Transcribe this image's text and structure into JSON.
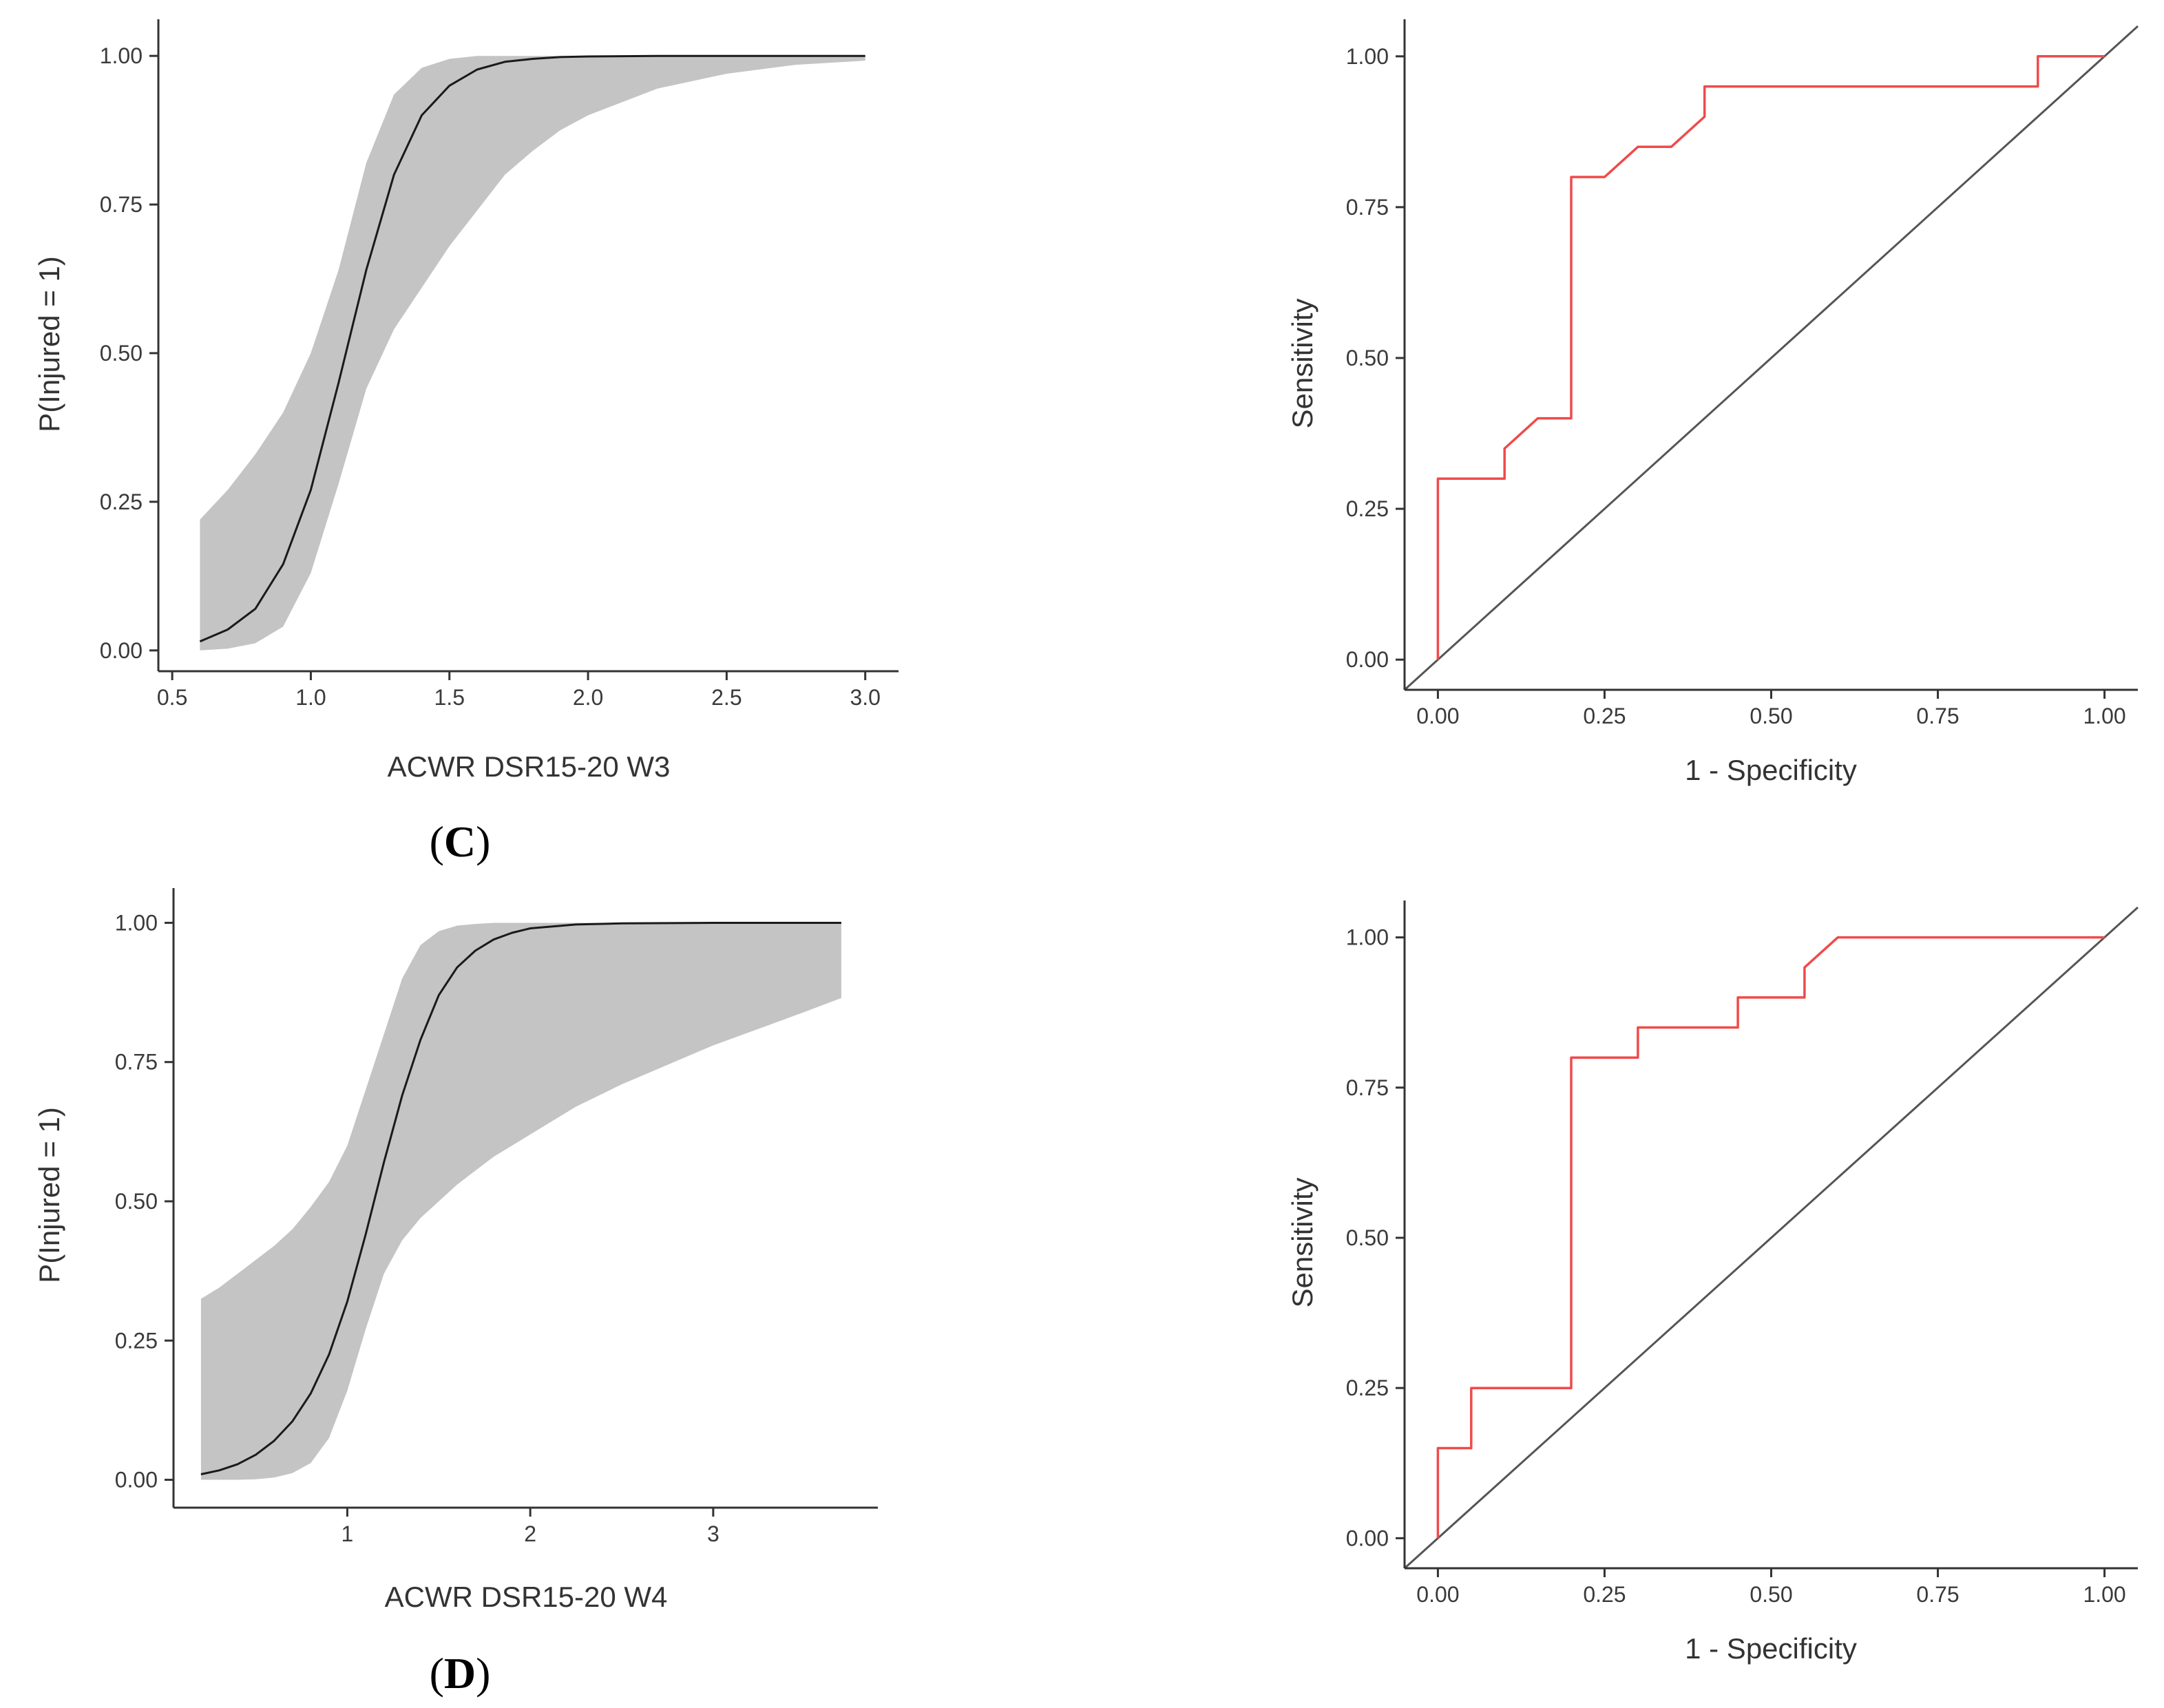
{
  "colors": {
    "axis": "#333333",
    "band": "#c4c4c4",
    "curve": "#1a1a1a",
    "roc": "#f04a4a",
    "diagonal": "#555555"
  },
  "labels": {
    "panel_c": "(C)",
    "panel_c_letter": "C",
    "panel_d": "(D)",
    "panel_d_letter": "D"
  },
  "chart_data": [
    {
      "id": "logit-c",
      "type": "line",
      "xlabel": "ACWR DSR15-20 W3",
      "ylabel": "P(Injured = 1)",
      "xlim": [
        0.45,
        3.12
      ],
      "ylim": [
        -0.035,
        1.05
      ],
      "x_ticks": [
        0.5,
        1.0,
        1.5,
        2.0,
        2.5,
        3.0
      ],
      "x_tick_labels": [
        "0.5",
        "1.0",
        "1.5",
        "2.0",
        "2.5",
        "3.0"
      ],
      "y_ticks": [
        0,
        0.25,
        0.5,
        0.75,
        1.0
      ],
      "y_tick_labels": [
        "0.00",
        "0.25",
        "0.50",
        "0.75",
        "1.00"
      ],
      "series": [
        {
          "kind": "line",
          "x": [
            0.6,
            0.7,
            0.8,
            0.9,
            1.0,
            1.1,
            1.2,
            1.3,
            1.4,
            1.5,
            1.6,
            1.7,
            1.8,
            1.9,
            2.0,
            2.25,
            2.5,
            2.75,
            3.0
          ],
          "y": [
            0.015,
            0.035,
            0.07,
            0.145,
            0.27,
            0.45,
            0.64,
            0.8,
            0.9,
            0.95,
            0.977,
            0.99,
            0.995,
            0.998,
            0.999,
            1.0,
            1.0,
            1.0,
            1.0
          ]
        },
        {
          "kind": "band",
          "x": [
            0.6,
            0.7,
            0.8,
            0.9,
            1.0,
            1.1,
            1.2,
            1.3,
            1.4,
            1.5,
            1.6,
            1.7,
            1.8,
            1.9,
            2.0,
            2.25,
            2.5,
            2.75,
            3.0
          ],
          "lower": [
            0.0,
            0.003,
            0.012,
            0.04,
            0.13,
            0.28,
            0.44,
            0.54,
            0.61,
            0.68,
            0.74,
            0.8,
            0.84,
            0.875,
            0.9,
            0.945,
            0.97,
            0.985,
            0.992
          ],
          "upper": [
            0.22,
            0.27,
            0.33,
            0.4,
            0.5,
            0.64,
            0.82,
            0.935,
            0.98,
            0.995,
            1.0,
            1.0,
            1.0,
            1.0,
            1.0,
            1.0,
            1.0,
            1.0,
            1.0
          ]
        }
      ]
    },
    {
      "id": "roc-c",
      "type": "line",
      "xlabel": "1 - Specificity",
      "ylabel": "Sensitivity",
      "xlim": [
        -0.05,
        1.05
      ],
      "ylim": [
        -0.05,
        1.05
      ],
      "x_ticks": [
        0,
        0.25,
        0.5,
        0.75,
        1.0
      ],
      "x_tick_labels": [
        "0.00",
        "0.25",
        "0.50",
        "0.75",
        "1.00"
      ],
      "y_ticks": [
        0,
        0.25,
        0.5,
        0.75,
        1.0
      ],
      "y_tick_labels": [
        "0.00",
        "0.25",
        "0.50",
        "0.75",
        "1.00"
      ],
      "series": [
        {
          "kind": "line",
          "x": [
            0.0,
            0.0,
            0.1,
            0.1,
            0.15,
            0.2,
            0.2,
            0.25,
            0.3,
            0.35,
            0.4,
            0.4,
            0.9,
            0.9,
            1.0
          ],
          "y": [
            0.0,
            0.3,
            0.3,
            0.35,
            0.4,
            0.4,
            0.8,
            0.8,
            0.85,
            0.85,
            0.9,
            0.95,
            0.95,
            1.0,
            1.0
          ]
        },
        {
          "kind": "diagonal",
          "x": [
            -0.05,
            1.05
          ],
          "y": [
            -0.05,
            1.05
          ]
        }
      ]
    },
    {
      "id": "logit-d",
      "type": "line",
      "xlabel": "ACWR DSR15-20 W4",
      "ylabel": "P(Injured = 1)",
      "xlim": [
        0.05,
        3.9
      ],
      "ylim": [
        -0.05,
        1.05
      ],
      "x_ticks": [
        1,
        2,
        3
      ],
      "x_tick_labels": [
        "1",
        "2",
        "3"
      ],
      "y_ticks": [
        0,
        0.25,
        0.5,
        0.75,
        1.0
      ],
      "y_tick_labels": [
        "0.00",
        "0.25",
        "0.50",
        "0.75",
        "1.00"
      ],
      "series": [
        {
          "kind": "line",
          "x": [
            0.2,
            0.3,
            0.4,
            0.5,
            0.6,
            0.7,
            0.8,
            0.9,
            1.0,
            1.1,
            1.2,
            1.3,
            1.4,
            1.5,
            1.6,
            1.7,
            1.8,
            1.9,
            2.0,
            2.25,
            2.5,
            3.0,
            3.5,
            3.7
          ],
          "y": [
            0.01,
            0.017,
            0.028,
            0.045,
            0.07,
            0.105,
            0.155,
            0.225,
            0.32,
            0.44,
            0.57,
            0.69,
            0.79,
            0.87,
            0.92,
            0.95,
            0.97,
            0.982,
            0.99,
            0.997,
            0.999,
            1.0,
            1.0,
            1.0
          ]
        },
        {
          "kind": "band",
          "x": [
            0.2,
            0.3,
            0.4,
            0.5,
            0.6,
            0.7,
            0.8,
            0.9,
            1.0,
            1.1,
            1.2,
            1.3,
            1.4,
            1.5,
            1.6,
            1.7,
            1.8,
            1.9,
            2.0,
            2.25,
            2.5,
            3.0,
            3.5,
            3.7
          ],
          "lower": [
            0.0,
            0.0,
            0.0,
            0.001,
            0.004,
            0.012,
            0.03,
            0.075,
            0.16,
            0.27,
            0.37,
            0.43,
            0.47,
            0.5,
            0.53,
            0.555,
            0.58,
            0.6,
            0.62,
            0.67,
            0.71,
            0.78,
            0.84,
            0.865
          ],
          "upper": [
            0.325,
            0.345,
            0.37,
            0.395,
            0.42,
            0.45,
            0.49,
            0.535,
            0.6,
            0.7,
            0.8,
            0.9,
            0.96,
            0.985,
            0.995,
            0.998,
            1.0,
            1.0,
            1.0,
            1.0,
            1.0,
            1.0,
            1.0,
            1.0
          ]
        }
      ]
    },
    {
      "id": "roc-d",
      "type": "line",
      "xlabel": "1 - Specificity",
      "ylabel": "Sensitivity",
      "xlim": [
        -0.05,
        1.05
      ],
      "ylim": [
        -0.05,
        1.05
      ],
      "x_ticks": [
        0,
        0.25,
        0.5,
        0.75,
        1.0
      ],
      "x_tick_labels": [
        "0.00",
        "0.25",
        "0.50",
        "0.75",
        "1.00"
      ],
      "y_ticks": [
        0,
        0.25,
        0.5,
        0.75,
        1.0
      ],
      "y_tick_labels": [
        "0.00",
        "0.25",
        "0.50",
        "0.75",
        "1.00"
      ],
      "series": [
        {
          "kind": "line",
          "x": [
            0.0,
            0.0,
            0.05,
            0.05,
            0.2,
            0.2,
            0.3,
            0.3,
            0.45,
            0.45,
            0.55,
            0.55,
            0.6,
            1.0
          ],
          "y": [
            0.0,
            0.15,
            0.15,
            0.25,
            0.25,
            0.8,
            0.8,
            0.85,
            0.85,
            0.9,
            0.9,
            0.95,
            1.0,
            1.0
          ]
        },
        {
          "kind": "diagonal",
          "x": [
            -0.05,
            1.05
          ],
          "y": [
            -0.05,
            1.05
          ]
        }
      ]
    }
  ]
}
